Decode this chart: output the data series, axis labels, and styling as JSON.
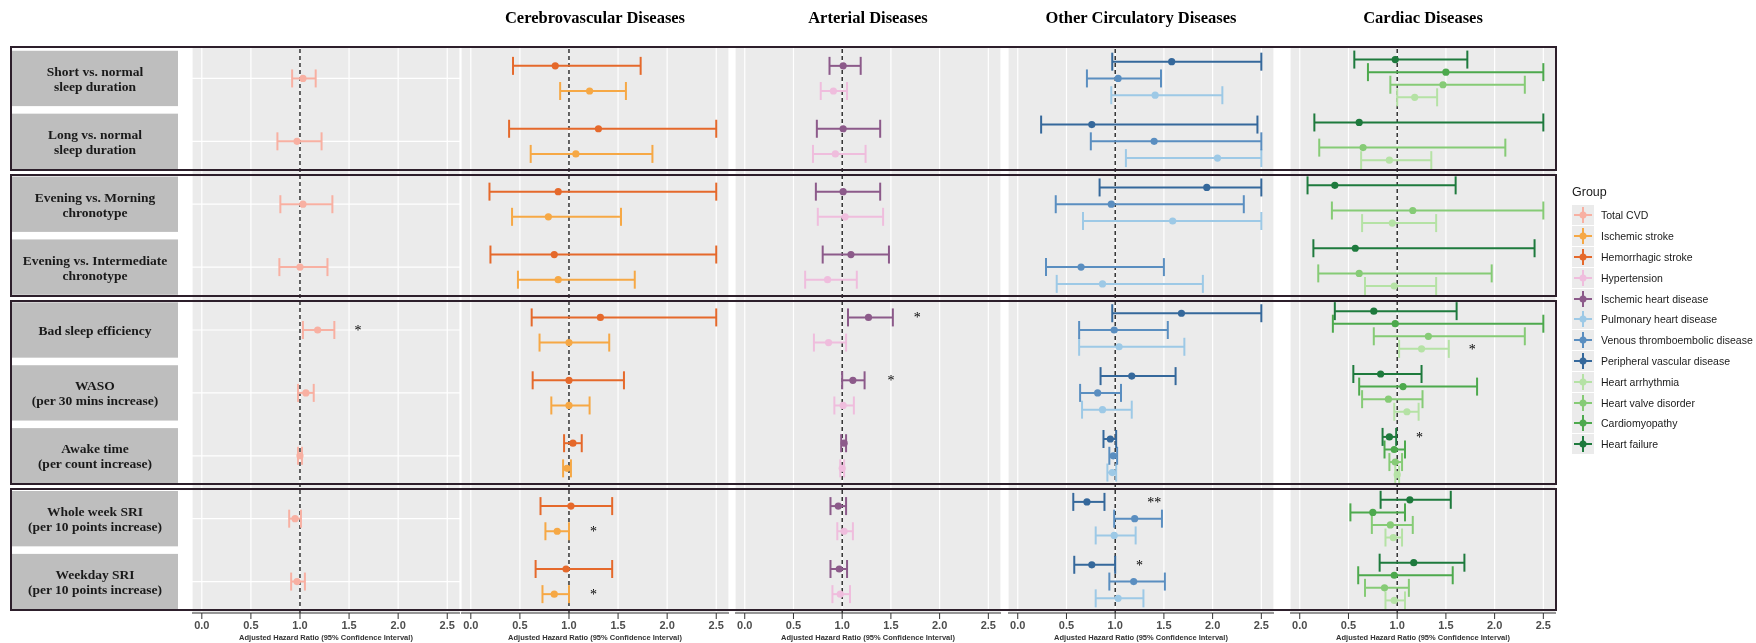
{
  "chart_data": [
    {
      "type": "scatter",
      "orientation": "horizontal",
      "xlabel": "Adjusted Hazard Ratio (95% Confidence Interval)",
      "categories": [
        "Short vs. normal\nsleep duration",
        "Long vs. normal\nsleep duration",
        "Evening vs. Morning\nchronotype",
        "Evening vs. Intermediate\nchronotype",
        "Bad sleep efficiency",
        "WASO\n(per 30 mins increase)",
        "Awake time\n(per count increase)",
        "Whole week SRI\n(per 10 points increase)",
        "Weekday SRI\n(per 10 points increase)"
      ],
      "xlim": [
        -0.1,
        2.63
      ],
      "xticks": [
        {
          "value": 0,
          "label": "0.0"
        },
        0.5,
        {
          "value": 1,
          "label": "1.0"
        },
        1.5,
        {
          "value": 2,
          "label": "2.0"
        },
        2.5
      ],
      "grid": true,
      "marker": "circle",
      "ref_lines": [
        {
          "axis": "x",
          "value": 1,
          "line_style": "dashed",
          "color": "#000000"
        }
      ],
      "legend": "right",
      "annotations": [
        "*"
      ],
      "series": [
        {
          "name": "Total CVD",
          "color": "#f8b0a2",
          "values": [
            1.03,
            0.97,
            1.03,
            1.0,
            1.18,
            1.06,
            1.0,
            0.95,
            0.97
          ],
          "errors": [
            [
              0.92,
              1.16
            ],
            [
              0.77,
              1.22
            ],
            [
              0.8,
              1.33
            ],
            [
              0.79,
              1.28
            ],
            [
              1.03,
              1.35
            ],
            [
              0.98,
              1.14
            ],
            [
              0.98,
              1.02
            ],
            [
              0.89,
              1.01
            ],
            [
              0.91,
              1.05
            ]
          ]
        }
      ]
    },
    {
      "type": "scatter",
      "orientation": "horizontal",
      "title": "Cerebrovascular Diseases",
      "xlabel": "Adjusted Hazard Ratio (95% Confidence Interval)",
      "tick_labels": "x",
      "xlim": [
        -0.1,
        2.63
      ],
      "xticks": [
        {
          "value": 0,
          "label": "0.0"
        },
        0.5,
        {
          "value": 1,
          "label": "1.0"
        },
        1.5,
        {
          "value": 2,
          "label": "2.0"
        },
        2.5
      ],
      "grid": true,
      "marker": "circle",
      "ref_lines": [
        {
          "axis": "x",
          "value": 1,
          "line_style": "dashed",
          "color": "#000000"
        }
      ],
      "legend": "right",
      "annotations": [
        "*",
        "*"
      ],
      "series": [
        {
          "name": "Ischemic stroke",
          "color": "#f6a845",
          "values": [
            1.21,
            1.07,
            0.79,
            0.89,
            1.0,
            1.0,
            0.98,
            0.88,
            0.85
          ],
          "errors": [
            [
              0.91,
              1.58
            ],
            [
              0.61,
              1.85
            ],
            [
              0.42,
              1.53
            ],
            [
              0.48,
              1.67
            ],
            [
              0.7,
              1.41
            ],
            [
              0.82,
              1.21
            ],
            [
              0.94,
              1.02
            ],
            [
              0.76,
              1.0
            ],
            [
              0.73,
              1.0
            ]
          ]
        },
        {
          "name": "Hemorrhagic stroke",
          "color": "#e5692b",
          "values": [
            0.86,
            1.3,
            0.89,
            0.85,
            1.32,
            1.0,
            1.04,
            1.02,
            0.97
          ],
          "errors": [
            [
              0.43,
              1.73
            ],
            [
              0.39,
              2.5
            ],
            [
              0.19,
              2.5
            ],
            [
              0.2,
              2.5
            ],
            [
              0.62,
              2.5
            ],
            [
              0.63,
              1.56
            ],
            [
              0.95,
              1.13
            ],
            [
              0.71,
              1.44
            ],
            [
              0.66,
              1.44
            ]
          ]
        }
      ]
    },
    {
      "type": "scatter",
      "orientation": "horizontal",
      "title": "Arterial Diseases",
      "xlabel": "Adjusted Hazard Ratio (95% Confidence Interval)",
      "tick_labels": "x",
      "xlim": [
        -0.1,
        2.63
      ],
      "xticks": [
        {
          "value": 0,
          "label": "0.0"
        },
        0.5,
        {
          "value": 1,
          "label": "1.0"
        },
        1.5,
        {
          "value": 2,
          "label": "2.0"
        },
        2.5
      ],
      "grid": true,
      "marker": "circle",
      "ref_lines": [
        {
          "axis": "x",
          "value": 1,
          "line_style": "dashed",
          "color": "#000000"
        }
      ],
      "legend": "right",
      "annotations": [
        "*",
        "*"
      ],
      "series": [
        {
          "name": "Hypertension",
          "color": "#efbddd",
          "values": [
            0.91,
            0.93,
            1.03,
            0.85,
            0.86,
            1.01,
            1.0,
            1.02,
            0.98
          ],
          "errors": [
            [
              0.78,
              1.05
            ],
            [
              0.7,
              1.24
            ],
            [
              0.75,
              1.42
            ],
            [
              0.62,
              1.15
            ],
            [
              0.71,
              1.04
            ],
            [
              0.92,
              1.12
            ],
            [
              0.98,
              1.02
            ],
            [
              0.95,
              1.11
            ],
            [
              0.9,
              1.08
            ]
          ]
        },
        {
          "name": "Ischemic heart disease",
          "color": "#8c5a8a",
          "values": [
            1.01,
            1.01,
            1.01,
            1.09,
            1.27,
            1.11,
            1.02,
            0.96,
            0.97
          ],
          "errors": [
            [
              0.87,
              1.19
            ],
            [
              0.74,
              1.39
            ],
            [
              0.73,
              1.39
            ],
            [
              0.8,
              1.48
            ],
            [
              1.06,
              1.52
            ],
            [
              1.0,
              1.23
            ],
            [
              0.99,
              1.04
            ],
            [
              0.88,
              1.04
            ],
            [
              0.88,
              1.05
            ]
          ]
        }
      ]
    },
    {
      "type": "scatter",
      "orientation": "horizontal",
      "title": "Other Circulatory Diseases",
      "xlabel": "Adjusted Hazard Ratio (95% Confidence Interval)",
      "tick_labels": "x",
      "xlim": [
        -0.1,
        2.63
      ],
      "xticks": [
        {
          "value": 0,
          "label": "0.0"
        },
        0.5,
        {
          "value": 1,
          "label": "1.0"
        },
        1.5,
        {
          "value": 2,
          "label": "2.0"
        },
        2.5
      ],
      "grid": true,
      "marker": "circle",
      "ref_lines": [
        {
          "axis": "x",
          "value": 1,
          "line_style": "dashed",
          "color": "#000000"
        }
      ],
      "legend": "right",
      "annotations": [
        "**",
        "*"
      ],
      "series": [
        {
          "name": "Pulmonary heart disease",
          "color": "#9dc9e6",
          "values": [
            1.41,
            2.05,
            1.59,
            0.87,
            1.04,
            0.87,
            0.97,
            0.99,
            1.03
          ],
          "errors": [
            [
              0.96,
              2.1
            ],
            [
              1.11,
              2.5
            ],
            [
              0.67,
              2.5
            ],
            [
              0.4,
              1.9
            ],
            [
              0.63,
              1.71
            ],
            [
              0.66,
              1.17
            ],
            [
              0.92,
              1.01
            ],
            [
              0.8,
              1.21
            ],
            [
              0.8,
              1.29
            ]
          ]
        },
        {
          "name": "Venous thromboembolic disease",
          "color": "#5a8ec0",
          "values": [
            1.03,
            1.4,
            0.96,
            0.65,
            0.99,
            0.82,
            0.98,
            1.2,
            1.19
          ],
          "errors": [
            [
              0.71,
              1.47
            ],
            [
              0.75,
              2.5
            ],
            [
              0.39,
              2.32
            ],
            [
              0.29,
              1.5
            ],
            [
              0.63,
              1.54
            ],
            [
              0.64,
              1.06
            ],
            [
              0.94,
              1.02
            ],
            [
              0.99,
              1.48
            ],
            [
              0.94,
              1.51
            ]
          ]
        },
        {
          "name": "Peripheral vascular disease",
          "color": "#35689b",
          "values": [
            1.58,
            0.76,
            1.94,
            null,
            1.68,
            1.17,
            0.95,
            0.71,
            0.76
          ],
          "errors": [
            [
              0.97,
              2.5
            ],
            [
              0.24,
              2.46
            ],
            [
              0.84,
              2.5
            ],
            null,
            [
              0.97,
              2.5
            ],
            [
              0.85,
              1.62
            ],
            [
              0.88,
              1.01
            ],
            [
              0.57,
              0.89
            ],
            [
              0.58,
              1.0
            ]
          ]
        }
      ]
    },
    {
      "type": "scatter",
      "orientation": "horizontal",
      "title": "Cardiac Diseases",
      "xlabel": "Adjusted Hazard Ratio (95% Confidence Interval)",
      "tick_labels": "x",
      "xlim": [
        -0.1,
        2.63
      ],
      "xticks": [
        {
          "value": 0,
          "label": "0.0"
        },
        0.5,
        {
          "value": 1,
          "label": "1.0"
        },
        1.5,
        {
          "value": 2,
          "label": "2.0"
        },
        2.5
      ],
      "grid": true,
      "marker": "circle",
      "legend": "right",
      "legend_title": "Group",
      "ref_lines": [
        {
          "axis": "x",
          "value": 1,
          "line_style": "dashed",
          "color": "#000000"
        }
      ],
      "annotations": [
        "*",
        "*"
      ],
      "series": [
        {
          "name": "Heart arrhythmia",
          "color": "#b5e2a5",
          "values": [
            1.18,
            0.92,
            0.95,
            0.97,
            1.25,
            1.1,
            1.0,
            0.96,
            0.97
          ],
          "errors": [
            [
              1.0,
              1.41
            ],
            [
              0.63,
              1.35
            ],
            [
              0.64,
              1.4
            ],
            [
              0.67,
              1.4
            ],
            [
              1.02,
              1.53
            ],
            [
              0.97,
              1.22
            ],
            [
              0.98,
              1.02
            ],
            [
              0.88,
              1.05
            ],
            [
              0.88,
              1.08
            ]
          ]
        },
        {
          "name": "Heart valve disorder",
          "color": "#86cb76",
          "values": [
            1.47,
            0.65,
            1.16,
            0.61,
            1.32,
            0.91,
            0.98,
            0.93,
            0.87
          ],
          "errors": [
            [
              0.93,
              2.31
            ],
            [
              0.2,
              2.11
            ],
            [
              0.33,
              2.5
            ],
            [
              0.19,
              1.97
            ],
            [
              0.76,
              2.31
            ],
            [
              0.64,
              1.26
            ],
            [
              0.92,
              1.05
            ],
            [
              0.74,
              1.16
            ],
            [
              0.67,
              1.12
            ]
          ]
        },
        {
          "name": "Cardiomyopathy",
          "color": "#4da94d",
          "values": [
            1.5,
            null,
            null,
            null,
            0.98,
            1.06,
            0.97,
            0.75,
            0.97
          ],
          "errors": [
            [
              0.7,
              2.5
            ],
            null,
            null,
            null,
            [
              0.34,
              2.5
            ],
            [
              0.61,
              1.82
            ],
            [
              0.87,
              1.08
            ],
            [
              0.52,
              1.08
            ],
            [
              0.6,
              1.57
            ]
          ]
        },
        {
          "name": "Heart failure",
          "color": "#1e7a3d",
          "values": [
            0.98,
            0.61,
            0.36,
            0.57,
            0.76,
            0.83,
            0.92,
            1.13,
            1.17
          ],
          "errors": [
            [
              0.56,
              1.72
            ],
            [
              0.15,
              2.5
            ],
            [
              0.08,
              1.6
            ],
            [
              0.14,
              2.41
            ],
            [
              0.36,
              1.61
            ],
            [
              0.55,
              1.25
            ],
            [
              0.85,
              0.99
            ],
            [
              0.83,
              1.55
            ],
            [
              0.82,
              1.69
            ]
          ]
        }
      ]
    }
  ]
}
